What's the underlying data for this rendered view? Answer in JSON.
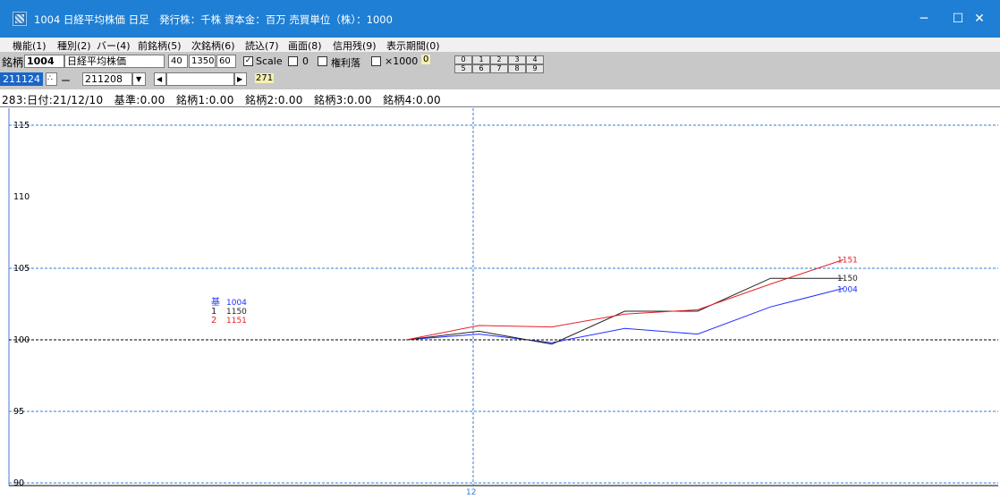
{
  "window": {
    "title": "1004 日経平均株価 日足　発行株：千株 資本金：百万 売買単位（株）：1000",
    "minimize": "─",
    "maximize": "☐",
    "close": "✕"
  },
  "menu": [
    "機能(1)",
    "種別(2)",
    "バー(4)",
    "前銘柄(5)",
    "次銘柄(6)",
    "読込(7)",
    "画面(8)",
    "信用残(9)",
    "表示期間(0)"
  ],
  "toolbar": {
    "code_label": "銘柄",
    "code": "1004",
    "name": "日経平均株価",
    "field_a": "40",
    "field_b": "1350",
    "field_c": "60",
    "scale_label": "Scale",
    "scale_checked": true,
    "zero_value": "0",
    "kenri_label": "権利落",
    "x1000_label": "×1000",
    "small_value": "0",
    "numbers": [
      "0",
      "1",
      "2",
      "3",
      "4",
      "5",
      "6",
      "7",
      "8",
      "9"
    ],
    "date_from": "211124",
    "date_to": "211208",
    "dash": "ー",
    "count": "271",
    "spin_icon": "∴",
    "dropdown_icon": "▼",
    "scroll_left_icon": "◀",
    "scroll_right_icon": "▶"
  },
  "info": {
    "text": "283:日付:21/12/10　基準:0.00　銘柄1:0.00　銘柄2:0.00　銘柄3:0.00　銘柄4:0.00"
  },
  "chart_data": {
    "type": "line",
    "ylim": [
      90,
      116
    ],
    "yticks": [
      90,
      95,
      100,
      105,
      110,
      115
    ],
    "ytick_labels": [
      "90",
      "95",
      "100",
      "105",
      "110",
      "115"
    ],
    "dashed_gridlines": [
      90,
      95,
      100,
      105,
      115
    ],
    "xtick_label": "12",
    "x": [
      1,
      2,
      3,
      4,
      5,
      6,
      7
    ],
    "series": [
      {
        "name": "1004",
        "color": "#1f2fff",
        "values": [
          100.0,
          100.4,
          99.8,
          100.8,
          100.4,
          102.3,
          103.6
        ]
      },
      {
        "name": "1150",
        "color": "#222222",
        "values": [
          100.0,
          100.6,
          99.7,
          102.0,
          102.0,
          104.3,
          104.3
        ]
      },
      {
        "name": "1151",
        "color": "#e8202a",
        "values": [
          100.0,
          101.0,
          100.9,
          101.8,
          102.1,
          103.9,
          105.6
        ]
      }
    ],
    "legend": {
      "placement": "left-center",
      "rows": [
        {
          "marker": "基",
          "name": "1004",
          "color": "#1f2fff"
        },
        {
          "marker": "1",
          "name": "1150",
          "color": "#222222"
        },
        {
          "marker": "2",
          "name": "1151",
          "color": "#e8202a"
        }
      ]
    },
    "end_labels": [
      "1151",
      "1150",
      "1004"
    ]
  }
}
